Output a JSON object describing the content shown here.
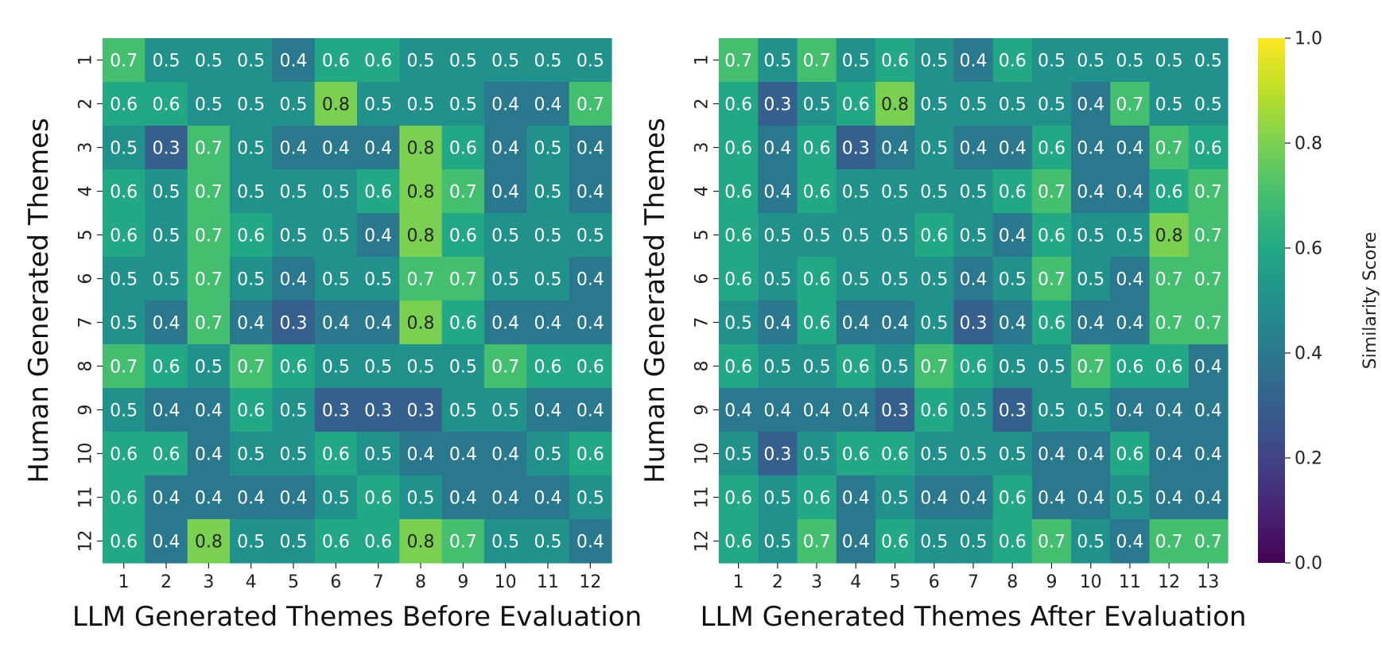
{
  "chart_data": [
    {
      "type": "heatmap",
      "id": "before",
      "xlabel": "LLM Generated Themes Before Evaluation",
      "ylabel": "Human Generated Themes",
      "x_ticks": [
        "1",
        "2",
        "3",
        "4",
        "5",
        "6",
        "7",
        "8",
        "9",
        "10",
        "11",
        "12"
      ],
      "y_ticks": [
        "1",
        "2",
        "3",
        "4",
        "5",
        "6",
        "7",
        "8",
        "9",
        "10",
        "11",
        "12"
      ],
      "values": [
        [
          0.7,
          0.5,
          0.5,
          0.5,
          0.4,
          0.6,
          0.6,
          0.5,
          0.5,
          0.5,
          0.5,
          0.5
        ],
        [
          0.6,
          0.6,
          0.5,
          0.5,
          0.5,
          0.8,
          0.5,
          0.5,
          0.5,
          0.4,
          0.4,
          0.7
        ],
        [
          0.5,
          0.3,
          0.7,
          0.5,
          0.4,
          0.4,
          0.4,
          0.8,
          0.6,
          0.4,
          0.5,
          0.4
        ],
        [
          0.6,
          0.5,
          0.7,
          0.5,
          0.5,
          0.5,
          0.6,
          0.8,
          0.7,
          0.4,
          0.5,
          0.4
        ],
        [
          0.6,
          0.5,
          0.7,
          0.6,
          0.5,
          0.5,
          0.4,
          0.8,
          0.6,
          0.5,
          0.5,
          0.5
        ],
        [
          0.5,
          0.5,
          0.7,
          0.5,
          0.4,
          0.5,
          0.5,
          0.7,
          0.7,
          0.5,
          0.5,
          0.4
        ],
        [
          0.5,
          0.4,
          0.7,
          0.4,
          0.3,
          0.4,
          0.4,
          0.8,
          0.6,
          0.4,
          0.4,
          0.4
        ],
        [
          0.7,
          0.6,
          0.5,
          0.7,
          0.6,
          0.5,
          0.5,
          0.5,
          0.5,
          0.7,
          0.6,
          0.6
        ],
        [
          0.5,
          0.4,
          0.4,
          0.6,
          0.5,
          0.3,
          0.3,
          0.3,
          0.5,
          0.5,
          0.4,
          0.4
        ],
        [
          0.6,
          0.6,
          0.4,
          0.5,
          0.5,
          0.6,
          0.5,
          0.4,
          0.4,
          0.4,
          0.5,
          0.6
        ],
        [
          0.6,
          0.4,
          0.4,
          0.4,
          0.4,
          0.5,
          0.6,
          0.5,
          0.4,
          0.4,
          0.4,
          0.5
        ],
        [
          0.6,
          0.4,
          0.8,
          0.5,
          0.5,
          0.6,
          0.6,
          0.8,
          0.7,
          0.5,
          0.5,
          0.4
        ]
      ],
      "vmin": 0.0,
      "vmax": 1.0,
      "colormap": "viridis"
    },
    {
      "type": "heatmap",
      "id": "after",
      "xlabel": "LLM Generated Themes After Evaluation",
      "ylabel": "Human Generated Themes",
      "x_ticks": [
        "1",
        "2",
        "3",
        "4",
        "5",
        "6",
        "7",
        "8",
        "9",
        "10",
        "11",
        "12",
        "13"
      ],
      "y_ticks": [
        "1",
        "2",
        "3",
        "4",
        "5",
        "6",
        "7",
        "8",
        "9",
        "10",
        "11",
        "12"
      ],
      "values": [
        [
          0.7,
          0.5,
          0.7,
          0.5,
          0.6,
          0.5,
          0.4,
          0.6,
          0.5,
          0.5,
          0.5,
          0.5,
          0.5
        ],
        [
          0.6,
          0.3,
          0.5,
          0.6,
          0.8,
          0.5,
          0.5,
          0.5,
          0.5,
          0.4,
          0.7,
          0.5,
          0.5
        ],
        [
          0.6,
          0.4,
          0.6,
          0.3,
          0.4,
          0.5,
          0.4,
          0.4,
          0.6,
          0.4,
          0.4,
          0.7,
          0.6
        ],
        [
          0.6,
          0.4,
          0.6,
          0.5,
          0.5,
          0.5,
          0.5,
          0.6,
          0.7,
          0.4,
          0.4,
          0.6,
          0.7
        ],
        [
          0.6,
          0.5,
          0.5,
          0.5,
          0.5,
          0.6,
          0.5,
          0.4,
          0.6,
          0.5,
          0.5,
          0.8,
          0.7
        ],
        [
          0.6,
          0.5,
          0.6,
          0.5,
          0.5,
          0.5,
          0.4,
          0.5,
          0.7,
          0.5,
          0.4,
          0.7,
          0.7
        ],
        [
          0.5,
          0.4,
          0.6,
          0.4,
          0.4,
          0.5,
          0.3,
          0.4,
          0.6,
          0.4,
          0.4,
          0.7,
          0.7
        ],
        [
          0.6,
          0.5,
          0.5,
          0.6,
          0.5,
          0.7,
          0.6,
          0.5,
          0.5,
          0.7,
          0.6,
          0.6,
          0.4
        ],
        [
          0.4,
          0.4,
          0.4,
          0.4,
          0.3,
          0.6,
          0.5,
          0.3,
          0.5,
          0.5,
          0.4,
          0.4,
          0.4
        ],
        [
          0.5,
          0.3,
          0.5,
          0.6,
          0.6,
          0.5,
          0.5,
          0.5,
          0.4,
          0.4,
          0.6,
          0.4,
          0.4
        ],
        [
          0.6,
          0.5,
          0.6,
          0.4,
          0.5,
          0.4,
          0.4,
          0.6,
          0.4,
          0.4,
          0.5,
          0.4,
          0.4
        ],
        [
          0.6,
          0.5,
          0.7,
          0.4,
          0.6,
          0.5,
          0.5,
          0.6,
          0.7,
          0.5,
          0.4,
          0.7,
          0.7
        ]
      ],
      "vmin": 0.0,
      "vmax": 1.0,
      "colormap": "viridis"
    }
  ],
  "colorbar": {
    "label": "Similarity Score",
    "min": 0.0,
    "max": 1.0,
    "ticks": [
      0.0,
      0.2,
      0.4,
      0.6,
      0.8,
      1.0
    ],
    "tick_labels": [
      "0.0",
      "0.2",
      "0.4",
      "0.6",
      "0.8",
      "1.0"
    ]
  },
  "colors": {
    "text_light": "#ffffff",
    "text_dark": "#262626",
    "axis_text": "#111111"
  }
}
